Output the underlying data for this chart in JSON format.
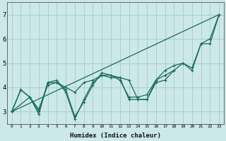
{
  "xlabel": "Humidex (Indice chaleur)",
  "bg_color": "#cce8e8",
  "grid_color": "#aacfcf",
  "line_color": "#1a6b5a",
  "xlim": [
    -0.5,
    23.5
  ],
  "ylim": [
    2.5,
    7.5
  ],
  "xticks": [
    0,
    1,
    2,
    3,
    4,
    5,
    6,
    7,
    8,
    9,
    10,
    11,
    12,
    13,
    14,
    15,
    16,
    17,
    18,
    19,
    20,
    21,
    22,
    23
  ],
  "yticks": [
    3,
    4,
    5,
    6,
    7
  ],
  "series": [
    [
      3.0,
      3.9,
      3.6,
      3.0,
      4.2,
      4.2,
      3.9,
      2.8,
      3.4,
      4.1,
      4.6,
      4.5,
      4.3,
      3.6,
      3.6,
      3.7,
      4.3,
      4.7,
      4.9,
      5.0,
      4.7,
      5.8,
      5.8,
      7.0
    ],
    [
      3.0,
      3.9,
      3.6,
      2.9,
      4.2,
      4.3,
      3.8,
      2.7,
      3.5,
      4.2,
      4.5,
      4.4,
      4.4,
      3.5,
      3.5,
      3.5,
      4.2,
      4.3,
      4.7,
      null,
      null,
      null,
      null,
      null
    ],
    [
      3.0,
      null,
      3.6,
      3.1,
      4.1,
      4.2,
      4.0,
      3.8,
      4.2,
      4.3,
      4.5,
      4.5,
      4.4,
      4.3,
      3.5,
      3.5,
      4.3,
      4.5,
      4.7,
      5.0,
      4.8,
      5.8,
      6.0,
      7.0
    ],
    [
      3.0,
      null,
      null,
      null,
      null,
      null,
      null,
      null,
      null,
      null,
      null,
      null,
      null,
      null,
      null,
      null,
      null,
      null,
      null,
      null,
      null,
      null,
      null,
      7.0
    ]
  ]
}
